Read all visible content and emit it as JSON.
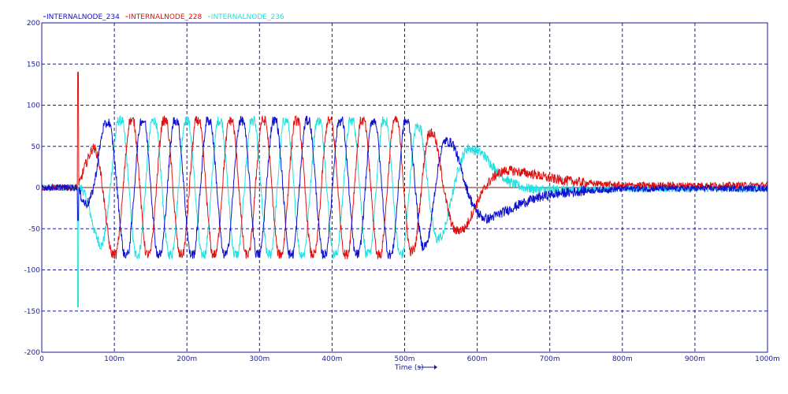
{
  "chart_data": {
    "type": "line",
    "title": "",
    "xlabel": "Time (s)",
    "ylabel": "",
    "xlim": [
      0,
      1000
    ],
    "ylim": [
      -200,
      200
    ],
    "grid": true,
    "legend_position": "top-left",
    "x_ticks": [
      0,
      100,
      200,
      300,
      400,
      500,
      600,
      700,
      800,
      900,
      1000
    ],
    "x_tick_labels": [
      "0",
      "100m",
      "200m",
      "300m",
      "400m",
      "500m",
      "600m",
      "700m",
      "800m",
      "900m",
      "1000m"
    ],
    "y_ticks": [
      -200,
      -150,
      -100,
      -50,
      0,
      50,
      100,
      150,
      200
    ],
    "y_tick_labels": [
      "-200",
      "-150",
      "-100",
      "-50",
      "0",
      "50",
      "100",
      "150",
      "200"
    ],
    "series": [
      {
        "name": "INTERNALNODE_234",
        "color": "#1010d0",
        "phase_deg": 240
      },
      {
        "name": "INTERNALNODE_228",
        "color": "#e01010",
        "phase_deg": 0
      },
      {
        "name": "INTERNALNODE_236",
        "color": "#20e0e0",
        "phase_deg": 120
      }
    ],
    "envelope": {
      "time_ms": [
        0,
        50,
        60,
        80,
        90,
        100,
        500,
        530,
        560,
        580,
        600,
        630,
        660,
        700,
        750,
        800,
        1000
      ],
      "amplitude": [
        0,
        0,
        30,
        75,
        85,
        88,
        88,
        75,
        60,
        55,
        48,
        35,
        22,
        12,
        6,
        3,
        3
      ]
    },
    "frequency_profile": {
      "time_ms": [
        0,
        50,
        80,
        120,
        500,
        530,
        560,
        600,
        650,
        700,
        1000
      ],
      "frequency_hz": [
        0,
        6,
        14,
        22,
        22,
        18,
        12,
        6,
        2,
        0.5,
        0
      ]
    },
    "spike": {
      "time_ms": 50,
      "values": [
        140,
        -40,
        -145
      ]
    }
  }
}
